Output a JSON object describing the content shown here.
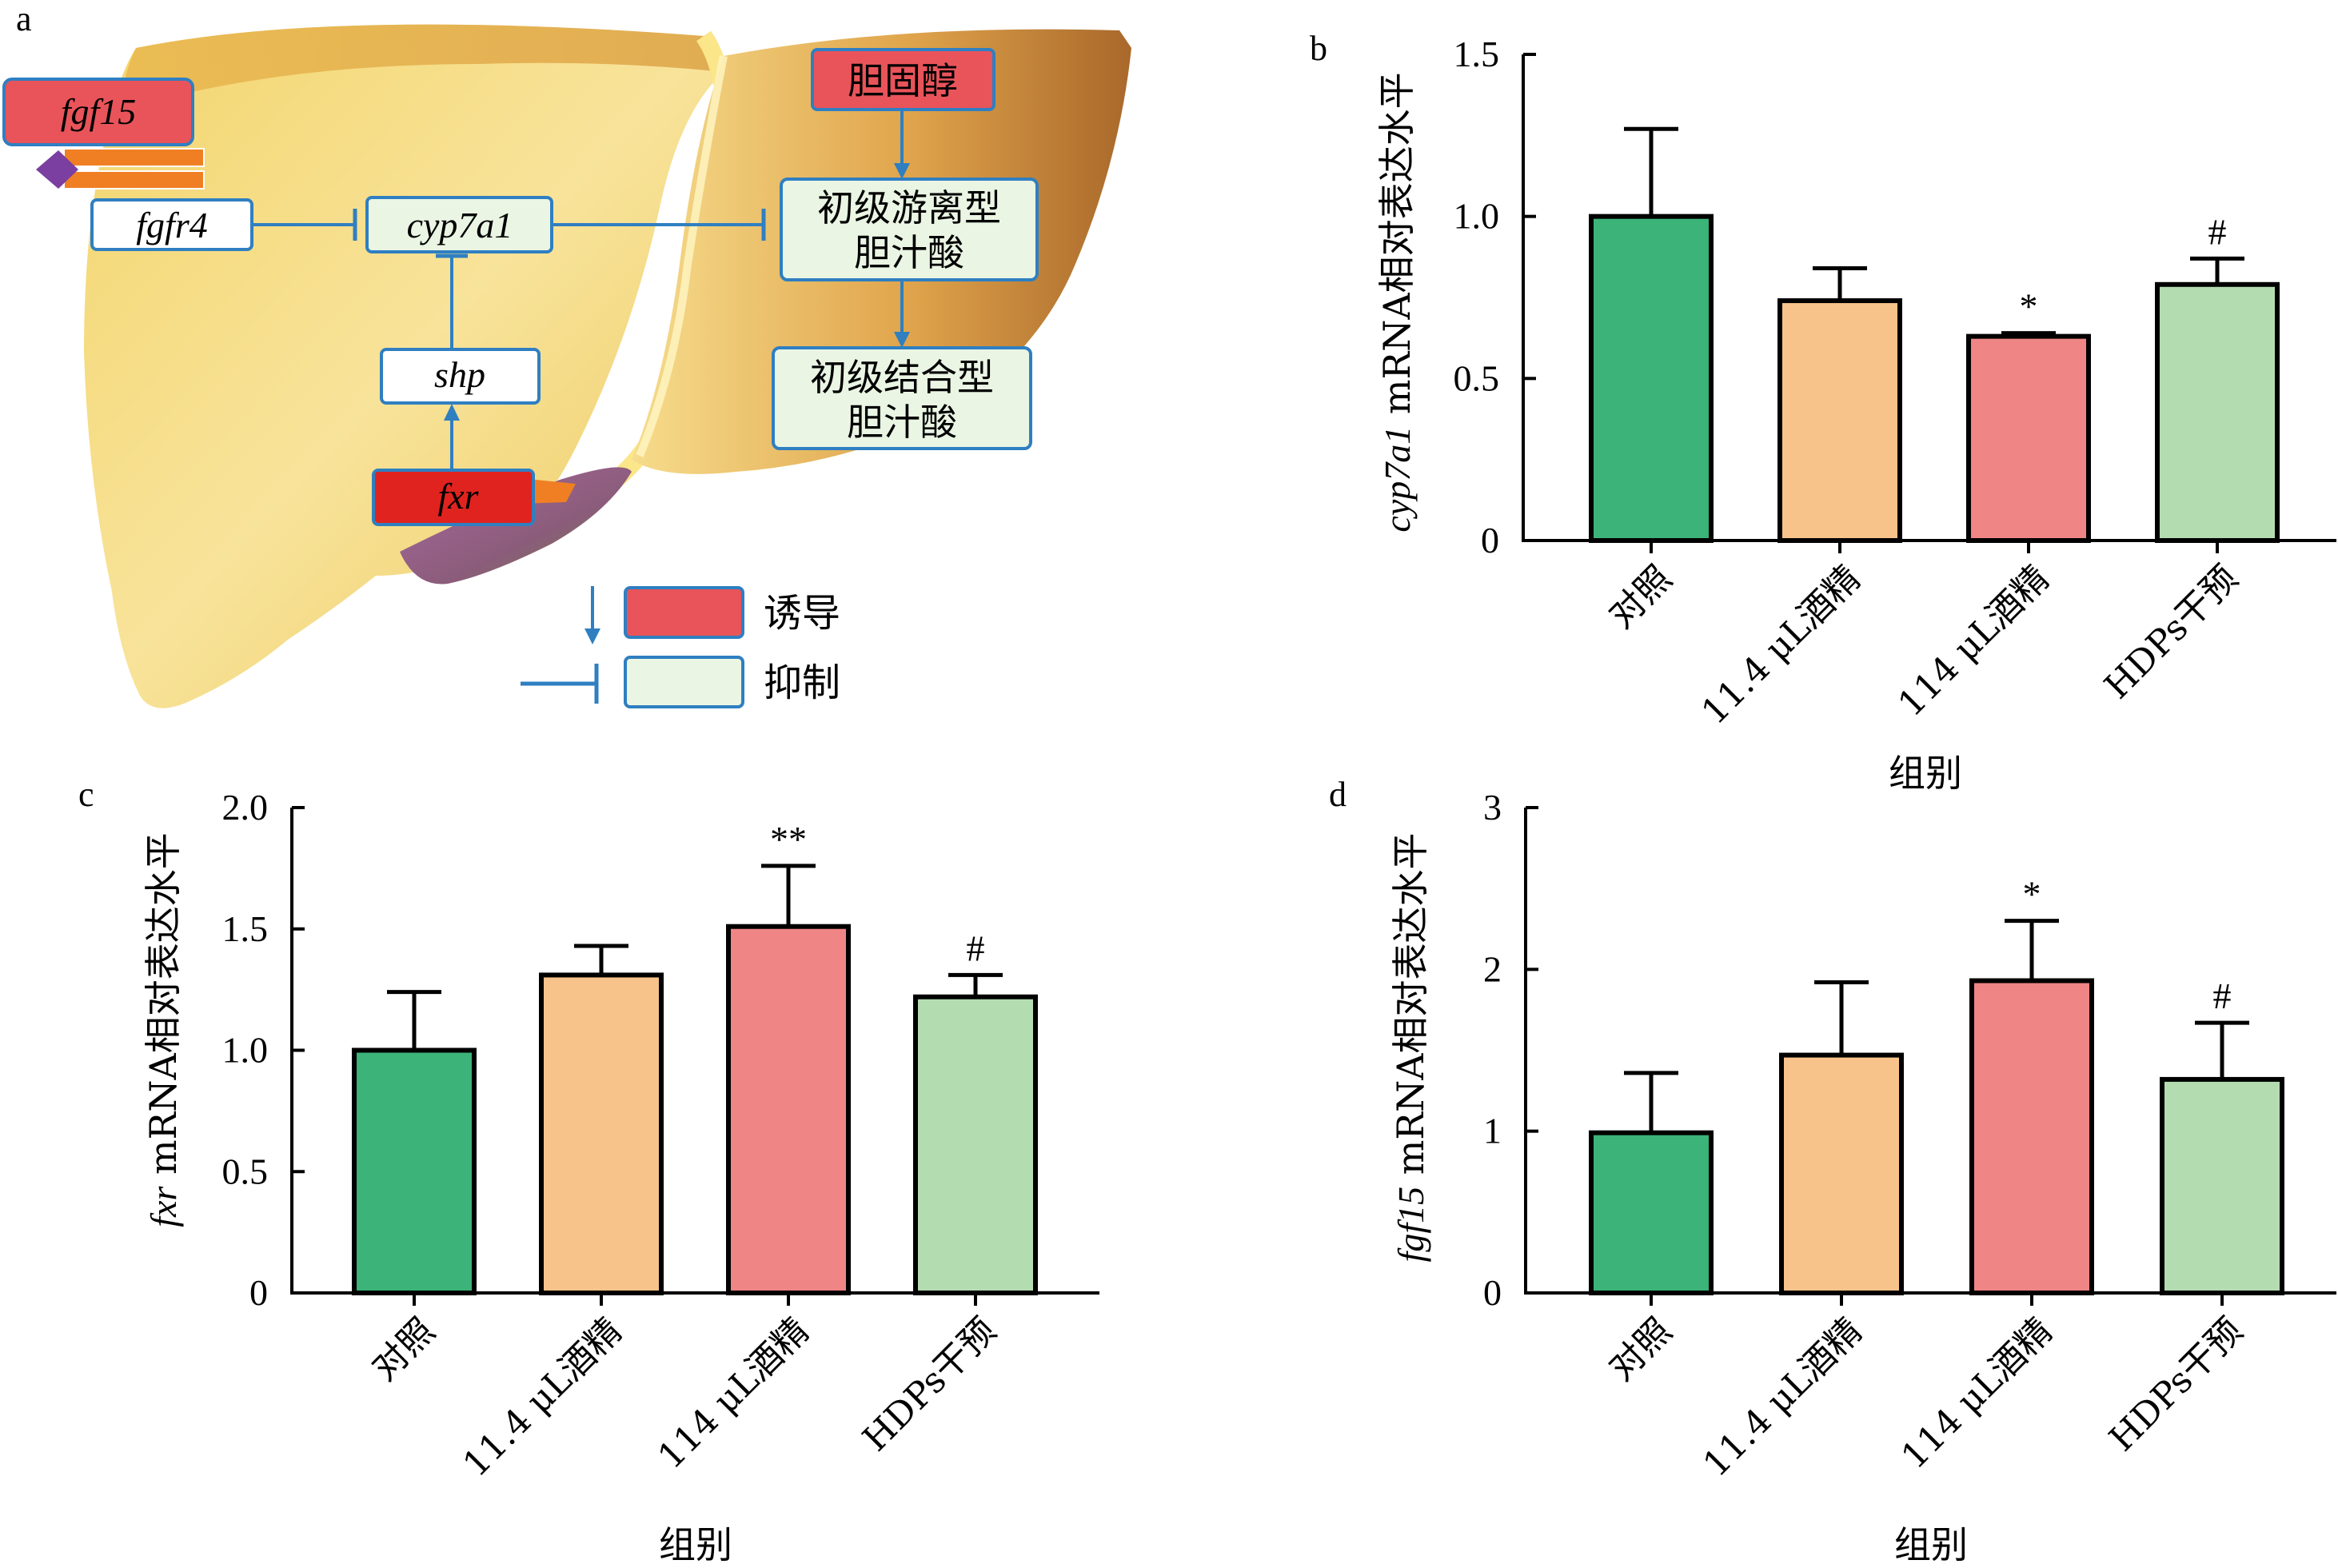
{
  "panels": {
    "a": "a",
    "b": "b",
    "c": "c",
    "d": "d"
  },
  "pathway": {
    "nodes": {
      "fgf15": "fgf15",
      "fgfr4": "fgfr4",
      "cyp7a1": "cyp7a1",
      "shp": "shp",
      "fxr": "fxr",
      "cholesterol": "胆固醇",
      "primary_free_line1": "初级游离型",
      "primary_free_line2": "胆汁酸",
      "primary_conj_line1": "初级结合型",
      "primary_conj_line2": "胆汁酸"
    },
    "legend": {
      "induce": "诱导",
      "inhibit": "抑制"
    },
    "colors": {
      "induce_fill": "#e8545a",
      "fxr_fill": "#e0231f",
      "inhibit_fill": "#eaf5e4",
      "node_border": "#2f7fc1",
      "arrow": "#2f7fc1",
      "liver_light": "#f6df8a",
      "liver_dark": "#b9772c"
    }
  },
  "colors": {
    "bar_fills": [
      "#3cb379",
      "#f8c38a",
      "#ef8585",
      "#b4dcb1"
    ]
  },
  "chart_data": [
    {
      "id": "b",
      "type": "bar",
      "categories": [
        "对照",
        "11.4 μL酒精",
        "114 μL酒精",
        "HDPs干预"
      ],
      "values": [
        1.0,
        0.74,
        0.63,
        0.79
      ],
      "errors": [
        0.27,
        0.1,
        0.01,
        0.08
      ],
      "significance": [
        "",
        "",
        "*",
        "#"
      ],
      "ylabel_gene": "cyp7a1",
      "ylabel_rest": " mRNA相对表达水平",
      "xlabel": "组别",
      "ylim": [
        0,
        1.5
      ],
      "yticks": [
        "0",
        "0.5",
        "1.0",
        "1.5"
      ],
      "ytick_values": [
        0,
        0.5,
        1.0,
        1.5
      ]
    },
    {
      "id": "c",
      "type": "bar",
      "categories": [
        "对照",
        "11.4 μL酒精",
        "114 μL酒精",
        "HDPs干预"
      ],
      "values": [
        1.0,
        1.31,
        1.51,
        1.22
      ],
      "errors": [
        0.24,
        0.12,
        0.25,
        0.09
      ],
      "significance": [
        "",
        "",
        "**",
        "#"
      ],
      "ylabel_gene": "fxr",
      "ylabel_rest": " mRNA相对表达水平",
      "xlabel": "组别",
      "ylim": [
        0,
        2.0
      ],
      "yticks": [
        "0",
        "0.5",
        "1.0",
        "1.5",
        "2.0"
      ],
      "ytick_values": [
        0,
        0.5,
        1.0,
        1.5,
        2.0
      ]
    },
    {
      "id": "d",
      "type": "bar",
      "categories": [
        "对照",
        "11.4 μL酒精",
        "114 μL酒精",
        "HDPs干预"
      ],
      "values": [
        0.99,
        1.47,
        1.93,
        1.32
      ],
      "errors": [
        0.37,
        0.45,
        0.37,
        0.35
      ],
      "significance": [
        "",
        "",
        "*",
        "#"
      ],
      "ylabel_gene": "fgf15",
      "ylabel_rest": " mRNA相对表达水平",
      "xlabel": "组别",
      "ylim": [
        0,
        3
      ],
      "yticks": [
        "0",
        "1",
        "2",
        "3"
      ],
      "ytick_values": [
        0,
        1,
        2,
        3
      ]
    }
  ]
}
